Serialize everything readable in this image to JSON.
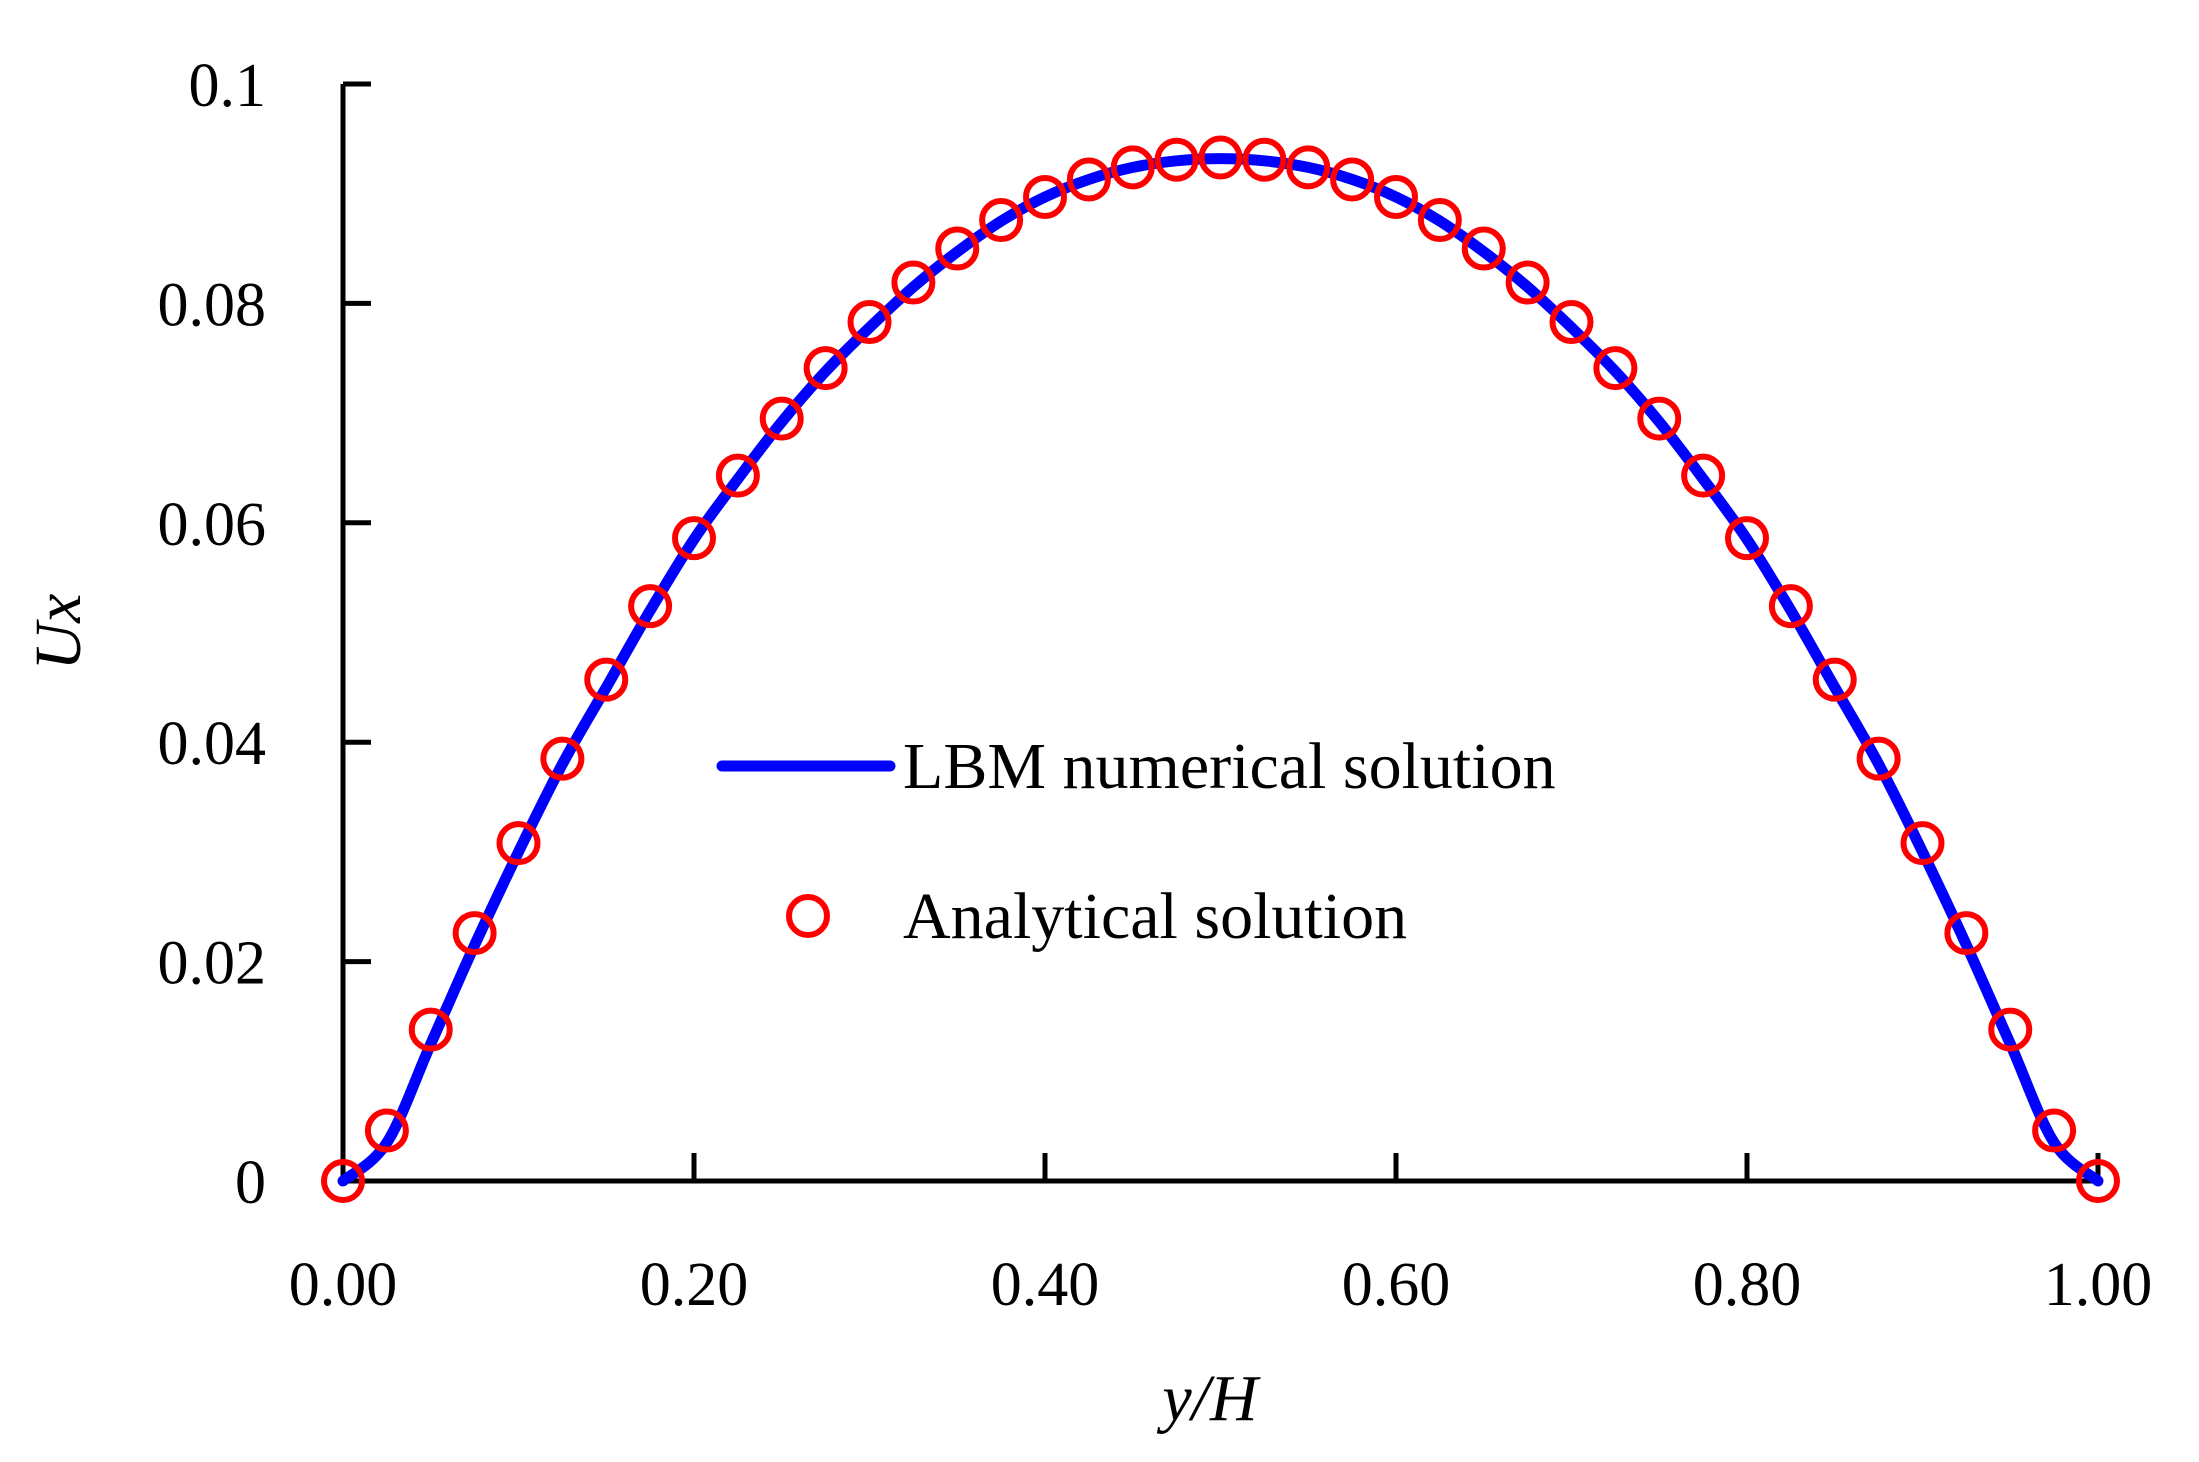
{
  "chart_data": {
    "type": "line",
    "title": "",
    "xlabel": "y/H",
    "ylabel": "Ux",
    "xlim": [
      0,
      1
    ],
    "ylim": [
      0,
      0.1
    ],
    "x_ticks": [
      0.0,
      0.2,
      0.4,
      0.6,
      0.8,
      1.0
    ],
    "x_tick_labels": [
      "0.00",
      "0.20",
      "0.40",
      "0.60",
      "0.80",
      "1.00"
    ],
    "y_ticks": [
      0,
      0.02,
      0.04,
      0.06,
      0.08,
      0.1
    ],
    "y_tick_labels": [
      "0",
      "0.02",
      "0.04",
      "0.06",
      "0.08",
      "0.1"
    ],
    "grid": false,
    "legend_position": "center",
    "series": [
      {
        "name": "LBM numerical solution",
        "kind": "line",
        "color": "#0000ff",
        "x": [
          0.0,
          0.025,
          0.05,
          0.075,
          0.1,
          0.125,
          0.15,
          0.175,
          0.2,
          0.225,
          0.25,
          0.275,
          0.3,
          0.325,
          0.35,
          0.375,
          0.4,
          0.425,
          0.45,
          0.475,
          0.5,
          0.525,
          0.55,
          0.575,
          0.6,
          0.625,
          0.65,
          0.675,
          0.7,
          0.725,
          0.75,
          0.775,
          0.8,
          0.825,
          0.85,
          0.875,
          0.9,
          0.925,
          0.95,
          0.975,
          1.0
        ],
        "y": [
          0.0,
          0.0035,
          0.0125,
          0.0215,
          0.03,
          0.038,
          0.045,
          0.052,
          0.0585,
          0.064,
          0.0692,
          0.0738,
          0.0778,
          0.0815,
          0.0847,
          0.0875,
          0.0897,
          0.0913,
          0.0924,
          0.093,
          0.0932,
          0.093,
          0.0924,
          0.0913,
          0.0897,
          0.0875,
          0.0847,
          0.0815,
          0.0778,
          0.0738,
          0.0692,
          0.064,
          0.0585,
          0.052,
          0.045,
          0.038,
          0.03,
          0.0215,
          0.0125,
          0.0035,
          0.0
        ]
      },
      {
        "name": "Analytical solution",
        "kind": "scatter",
        "color": "#ff0000",
        "x": [
          0.0,
          0.025,
          0.05,
          0.075,
          0.1,
          0.125,
          0.15,
          0.175,
          0.2,
          0.225,
          0.25,
          0.275,
          0.3,
          0.325,
          0.35,
          0.375,
          0.4,
          0.425,
          0.45,
          0.475,
          0.5,
          0.525,
          0.55,
          0.575,
          0.6,
          0.625,
          0.65,
          0.675,
          0.7,
          0.725,
          0.75,
          0.775,
          0.8,
          0.825,
          0.85,
          0.875,
          0.9,
          0.925,
          0.95,
          0.975,
          1.0
        ],
        "y": [
          0.0,
          0.0046,
          0.0138,
          0.0226,
          0.0308,
          0.0385,
          0.0457,
          0.0524,
          0.0586,
          0.0643,
          0.0695,
          0.0741,
          0.0783,
          0.0819,
          0.085,
          0.0876,
          0.0897,
          0.0913,
          0.0924,
          0.0931,
          0.0933,
          0.0931,
          0.0924,
          0.0913,
          0.0897,
          0.0876,
          0.085,
          0.0819,
          0.0783,
          0.0741,
          0.0695,
          0.0643,
          0.0586,
          0.0524,
          0.0457,
          0.0385,
          0.0308,
          0.0226,
          0.0138,
          0.0046,
          0.0
        ]
      }
    ]
  }
}
